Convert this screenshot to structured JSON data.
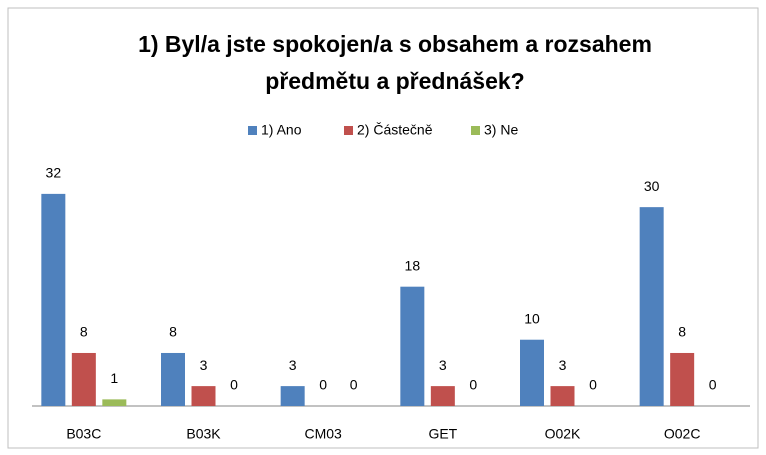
{
  "chart_data": {
    "type": "bar",
    "title": "1) Byl/a jste spokojen/a s obsahem a rozsahem",
    "subtitle": "předmětu a přednášek?",
    "categories": [
      "B03C",
      "B03K",
      "CM03",
      "GET",
      "O02K",
      "O02C"
    ],
    "series": [
      {
        "name": "1) Ano",
        "color": "#4f81bd",
        "values": [
          32,
          8,
          3,
          18,
          10,
          30
        ]
      },
      {
        "name": "2) Částečně",
        "color": "#c0504d",
        "values": [
          8,
          3,
          0,
          3,
          3,
          8
        ]
      },
      {
        "name": "3) Ne",
        "color": "#9bbb59",
        "values": [
          1,
          0,
          0,
          0,
          0,
          0
        ]
      }
    ],
    "ylim": [
      0,
      35
    ],
    "legend": "top"
  }
}
